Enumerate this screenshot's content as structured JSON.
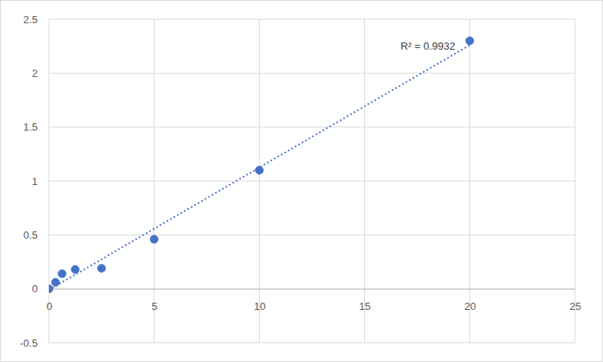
{
  "chart_data": {
    "type": "scatter",
    "series": [
      {
        "type": "scatter",
        "marker": "circle",
        "color": "#4472c4",
        "x": [
          0,
          0.3125,
          0.625,
          1.25,
          2.5,
          5,
          10,
          20
        ],
        "values": [
          0,
          0.06,
          0.14,
          0.18,
          0.19,
          0.46,
          1.1,
          2.3
        ]
      },
      {
        "type": "line",
        "line_style": "dotted",
        "color": "#4472c4",
        "x": [
          0,
          20
        ],
        "values": [
          -0.01,
          2.26
        ]
      }
    ],
    "xlim": [
      0,
      25
    ],
    "ylim": [
      -0.5,
      2.5
    ],
    "xticks": [
      0,
      5,
      10,
      15,
      20,
      25
    ],
    "yticks": [
      -0.5,
      0,
      0.5,
      1,
      1.5,
      2,
      2.5
    ],
    "grid": true,
    "annotations": [
      "R² = 0.9932"
    ]
  }
}
